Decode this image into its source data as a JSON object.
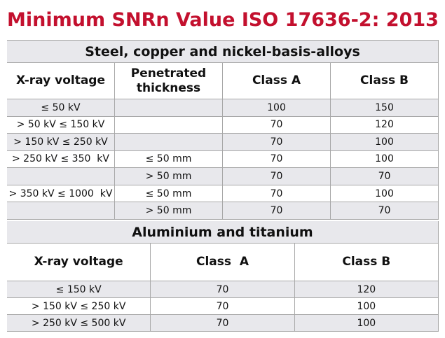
{
  "title": "Minimum SNRn Value ISO 17636-2: 2013",
  "sections": [
    {
      "heading": "Steel, copper and nickel-basis-alloys",
      "columns": [
        "X-ray voltage",
        "Penetrated thickness",
        "Class A",
        "Class B"
      ],
      "rows": [
        [
          "≤ 50 kV",
          null,
          "100",
          "150"
        ],
        [
          "> 50 kV ≤ 150 kV",
          null,
          "70",
          "120"
        ],
        [
          "> 150 kV ≤ 250 kV",
          null,
          "70",
          "100"
        ],
        [
          "> 250 kV ≤ 350  kV",
          "≤ 50 mm",
          "70",
          "100"
        ],
        [
          null,
          "> 50 mm",
          "70",
          "70"
        ],
        [
          "> 350 kV ≤ 1000  kV",
          "≤ 50 mm",
          "70",
          "100"
        ],
        [
          null,
          "> 50 mm",
          "70",
          "70"
        ]
      ]
    },
    {
      "heading": "Aluminium and titanium",
      "columns": [
        "X-ray voltage",
        "Class  A",
        "Class B"
      ],
      "rows": [
        [
          "≤ 150 kV",
          "70",
          "120"
        ],
        [
          "> 150 kV ≤ 250 kV",
          "70",
          "100"
        ],
        [
          "> 250 kV ≤ 500 kV",
          "70",
          "100"
        ]
      ]
    }
  ]
}
